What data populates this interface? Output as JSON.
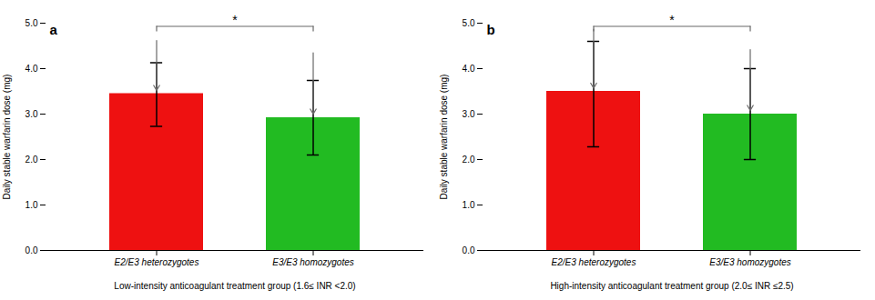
{
  "chart_data": [
    {
      "type": "bar",
      "title": "a",
      "categories": [
        "E2/E3 heterozygotes",
        "E3/E3 homozygotes"
      ],
      "values": [
        3.45,
        2.92
      ],
      "err_upper": [
        0.68,
        0.82
      ],
      "err_lower": [
        0.72,
        0.82
      ],
      "colors": [
        "#ee1111",
        "#22bb22"
      ],
      "ylim": [
        0,
        5
      ],
      "yticks": [
        0,
        1,
        2,
        3,
        4,
        5
      ],
      "ylabel": "Daily stable warfarin dose (mg)",
      "xlabel": "Low-intensity anticoagulant treatment group (1.6≤ INR <2.0)",
      "grid": false,
      "annotations": [
        {
          "type": "bracket",
          "text": "*",
          "x": [
            "E2/E3 heterozygotes",
            "E3/E3 homozygotes"
          ],
          "y": 4.93,
          "color": "dimgray"
        },
        {
          "type": "arrow",
          "x": "E2/E3 heterozygotes",
          "y_start": 4.62,
          "y_end": 3.52,
          "color": "dimgray"
        },
        {
          "type": "arrow",
          "x": "E3/E3 homozygotes",
          "y_start": 4.35,
          "y_end": 3.0,
          "color": "dimgray"
        }
      ]
    },
    {
      "type": "bar",
      "title": "b",
      "categories": [
        "E2/E3 heterozygotes",
        "E3/E3 homozygotes"
      ],
      "values": [
        3.5,
        3.0
      ],
      "err_upper": [
        1.1,
        1.0
      ],
      "err_lower": [
        1.22,
        1.0
      ],
      "colors": [
        "#ee1111",
        "#22bb22"
      ],
      "ylim": [
        0,
        5
      ],
      "yticks": [
        0,
        1,
        2,
        3,
        4,
        5
      ],
      "ylabel": "Daily stable warfarin dose (mg)",
      "xlabel": "High-intensity anticoagulant treatment group (2.0≤ INR ≤2.5)",
      "grid": false,
      "annotations": [
        {
          "type": "bracket",
          "text": "*",
          "x": [
            "E2/E3 heterozygotes",
            "E3/E3 homozygotes"
          ],
          "y": 4.93,
          "color": "dimgray"
        },
        {
          "type": "arrow",
          "x": "E2/E3 heterozygotes",
          "y_start": 4.87,
          "y_end": 3.57,
          "color": "dimgray"
        },
        {
          "type": "arrow",
          "x": "E3/E3 homozygotes",
          "y_start": 4.42,
          "y_end": 3.08,
          "color": "dimgray"
        }
      ]
    }
  ]
}
